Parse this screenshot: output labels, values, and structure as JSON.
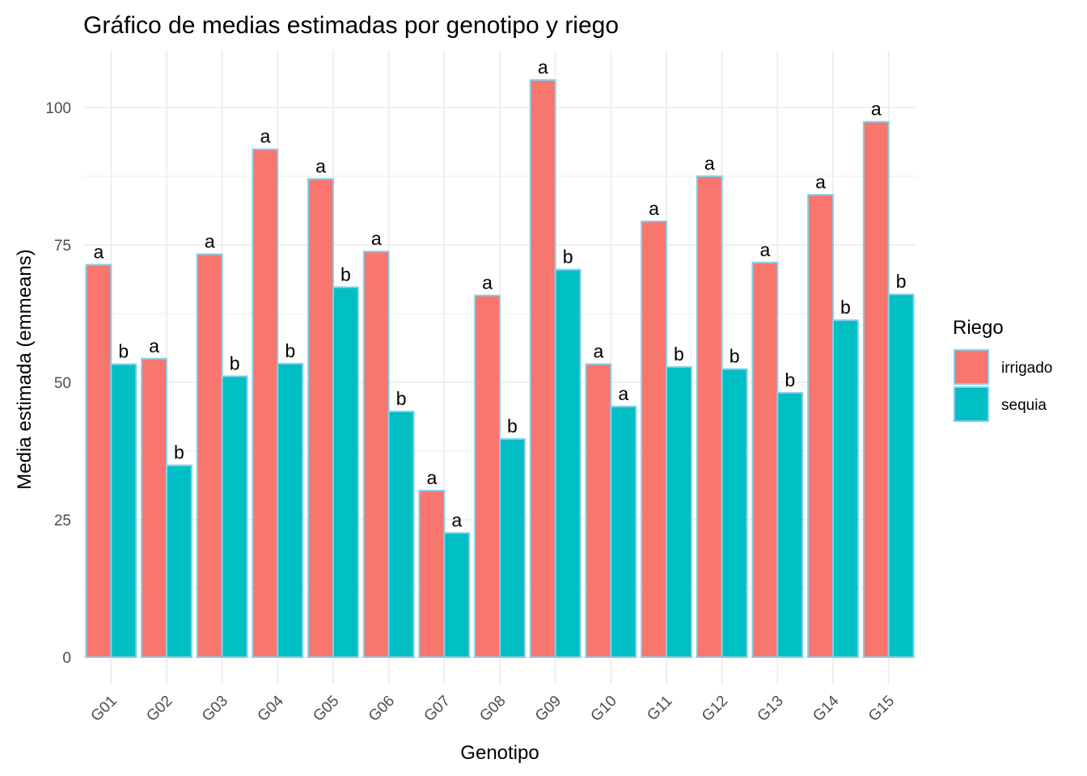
{
  "chart_data": {
    "type": "bar",
    "title": "Gráfico de medias estimadas por genotipo y riego",
    "xlabel": "Genotipo",
    "ylabel": "Media estimada (emmeans)",
    "ylim": [
      0,
      110
    ],
    "yticks": [
      0,
      25,
      50,
      75,
      100
    ],
    "grid": true,
    "legend": {
      "title": "Riego",
      "placement": "right"
    },
    "categories": [
      "G01",
      "G02",
      "G03",
      "G04",
      "G05",
      "G06",
      "G07",
      "G08",
      "G09",
      "G10",
      "G11",
      "G12",
      "G13",
      "G14",
      "G15"
    ],
    "series": [
      {
        "name": "irrigado",
        "color": "#F8766D",
        "values": [
          71.4,
          54.3,
          73.3,
          92.4,
          87.0,
          73.8,
          30.3,
          65.8,
          105.0,
          53.3,
          79.3,
          87.5,
          71.8,
          84.1,
          97.4
        ],
        "labels": [
          "a",
          "a",
          "a",
          "a",
          "a",
          "a",
          "a",
          "a",
          "a",
          "a",
          "a",
          "a",
          "a",
          "a",
          "a"
        ]
      },
      {
        "name": "sequia",
        "color": "#00BFC4",
        "values": [
          53.3,
          34.9,
          51.1,
          53.4,
          67.3,
          44.7,
          22.6,
          39.7,
          70.5,
          45.6,
          52.8,
          52.4,
          48.1,
          61.3,
          66.0
        ],
        "labels": [
          "b",
          "b",
          "b",
          "b",
          "b",
          "b",
          "a",
          "b",
          "b",
          "a",
          "b",
          "b",
          "b",
          "b",
          "b"
        ]
      }
    ],
    "bar_outline_color": "#87CEEB"
  }
}
